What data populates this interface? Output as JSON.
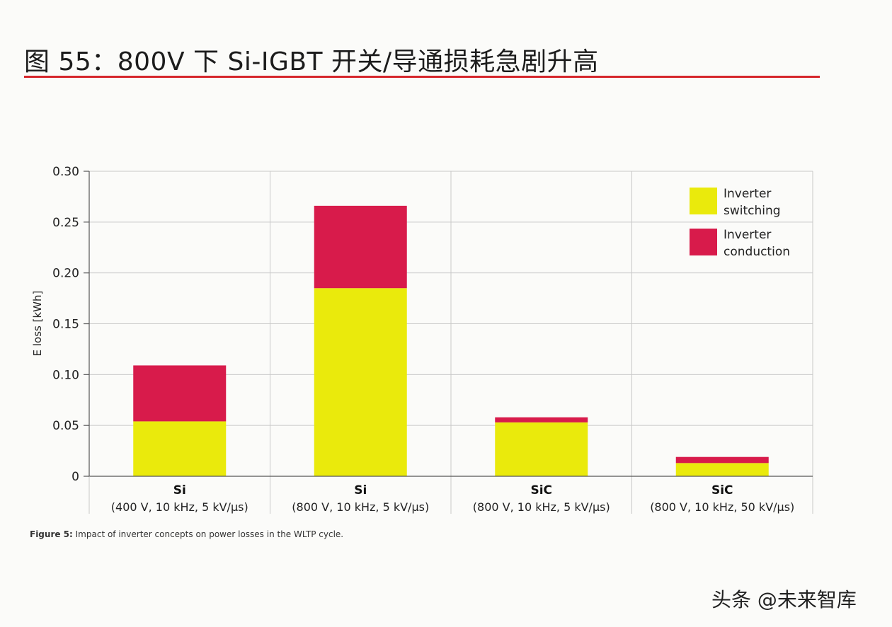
{
  "figure": {
    "title": "图 55：800V 下 Si-IGBT 开关/导通损耗急剧升高",
    "caption_label": "Figure 5:",
    "caption_text": " Impact of inverter concepts on power losses in the WLTP cycle.",
    "watermark": "头条 @未来智库"
  },
  "colors": {
    "switching": "#eaea0c",
    "conduction": "#d81b4b",
    "title_rule": "#d6262c",
    "grid": "#c8c8c8",
    "axis": "#555555"
  },
  "chart_data": {
    "type": "bar",
    "stacked": true,
    "title": "",
    "xlabel": "",
    "ylabel": "E loss [kWh]",
    "ylim": [
      0,
      0.3
    ],
    "yticks": [
      0,
      0.05,
      0.1,
      0.15,
      0.2,
      0.25,
      0.3
    ],
    "ytick_labels": [
      "0",
      "0.05",
      "0.10",
      "0.15",
      "0.20",
      "0.25",
      "0.30"
    ],
    "grid": true,
    "legend_position": "top-right",
    "categories": [
      {
        "name": "Si",
        "detail": "(400 V, 10 kHz, 5 kV/µs)"
      },
      {
        "name": "Si",
        "detail": "(800 V, 10 kHz, 5 kV/µs)"
      },
      {
        "name": "SiC",
        "detail": "(800 V, 10 kHz, 5 kV/µs)"
      },
      {
        "name": "SiC",
        "detail": "(800 V, 10 kHz, 50 kV/µs)"
      }
    ],
    "series": [
      {
        "name": "Inverter switching",
        "legend_lines": [
          "Inverter",
          "switching"
        ],
        "color": "#eaea0c",
        "values": [
          0.054,
          0.185,
          0.053,
          0.013
        ]
      },
      {
        "name": "Inverter conduction",
        "legend_lines": [
          "Inverter",
          "conduction"
        ],
        "color": "#d81b4b",
        "values": [
          0.055,
          0.081,
          0.005,
          0.006
        ]
      }
    ]
  }
}
